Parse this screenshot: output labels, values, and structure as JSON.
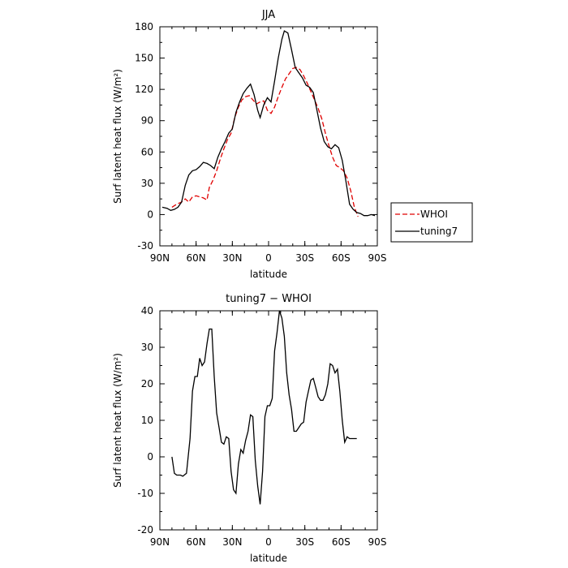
{
  "chart_data": [
    {
      "type": "line",
      "title": "JJA",
      "xlabel": "latitude",
      "ylabel": "Surf latent heat flux (W/m²)",
      "xlim": [
        90,
        -90
      ],
      "ylim": [
        -30,
        180
      ],
      "x_ticks": [
        {
          "value": 90,
          "label": "90N"
        },
        {
          "value": 60,
          "label": "60N"
        },
        {
          "value": 30,
          "label": "30N"
        },
        {
          "value": 0,
          "label": "0"
        },
        {
          "value": -30,
          "label": "30S"
        },
        {
          "value": -60,
          "label": "60S"
        },
        {
          "value": -90,
          "label": "90S"
        }
      ],
      "y_ticks": [
        -30,
        0,
        30,
        60,
        90,
        120,
        150,
        180
      ],
      "legend": {
        "placement": "outside-right",
        "entries": [
          "WHOI",
          "tuning7"
        ]
      },
      "series": [
        {
          "name": "WHOI",
          "color": "#e00000",
          "style": "dashed",
          "x": [
            80,
            76,
            72,
            69,
            66,
            63,
            60,
            57,
            54,
            51,
            49,
            46,
            43,
            40,
            37,
            34,
            31,
            28,
            25,
            22,
            19,
            16,
            13,
            10,
            7,
            4,
            1,
            -2,
            -5,
            -8,
            -11,
            -14,
            -17,
            -20,
            -23,
            -26,
            -29,
            -32,
            -35,
            -38,
            -41,
            -44,
            -47,
            -50,
            -53,
            -56,
            -59,
            -62,
            -65,
            -68,
            -71,
            -74
          ],
          "y": [
            7,
            10,
            12,
            15,
            12,
            17,
            18,
            17,
            16,
            14,
            26,
            33,
            42,
            53,
            63,
            72,
            78,
            93,
            103,
            110,
            113,
            114,
            110,
            106,
            108,
            109,
            100,
            97,
            103,
            113,
            122,
            130,
            135,
            140,
            141,
            139,
            133,
            126,
            118,
            110,
            102,
            92,
            78,
            66,
            55,
            47,
            45,
            42,
            35,
            23,
            7,
            -2
          ]
        },
        {
          "name": "tuning7",
          "color": "#000000",
          "style": "solid",
          "x": [
            88,
            84,
            81,
            78,
            75,
            72,
            69,
            66,
            63,
            60,
            57,
            54,
            51,
            48,
            45,
            42,
            39,
            36,
            33,
            30,
            27,
            24,
            21,
            18,
            15,
            12,
            9,
            7,
            4,
            1,
            -2,
            -5,
            -8,
            -11,
            -13,
            -16,
            -19,
            -22,
            -25,
            -28,
            -31,
            -34,
            -37,
            -40,
            -43,
            -46,
            -49,
            -52,
            -55,
            -58,
            -61,
            -64,
            -67,
            -70,
            -73,
            -76,
            -79,
            -82,
            -85,
            -88
          ],
          "y": [
            7,
            6,
            4,
            5,
            7,
            12,
            28,
            38,
            42,
            43,
            46,
            50,
            49,
            47,
            44,
            55,
            63,
            70,
            78,
            82,
            98,
            108,
            116,
            121,
            125,
            115,
            100,
            93,
            105,
            112,
            108,
            128,
            150,
            168,
            176,
            174,
            158,
            141,
            136,
            131,
            124,
            122,
            117,
            100,
            83,
            70,
            65,
            63,
            67,
            64,
            52,
            32,
            10,
            5,
            2,
            1,
            -1,
            -1,
            0,
            -1
          ]
        }
      ]
    },
    {
      "type": "line",
      "title": "tuning7 − WHOI",
      "xlabel": "latitude",
      "ylabel": "Surf latent heat flux (W/m²)",
      "xlim": [
        90,
        -90
      ],
      "ylim": [
        -20,
        40
      ],
      "x_ticks": [
        {
          "value": 90,
          "label": "90N"
        },
        {
          "value": 60,
          "label": "60N"
        },
        {
          "value": 30,
          "label": "30N"
        },
        {
          "value": 0,
          "label": "0"
        },
        {
          "value": -30,
          "label": "30S"
        },
        {
          "value": -60,
          "label": "60S"
        },
        {
          "value": -90,
          "label": "90S"
        }
      ],
      "y_ticks": [
        -20,
        -10,
        0,
        10,
        20,
        30,
        40
      ],
      "series": [
        {
          "name": "",
          "color": "#000000",
          "style": "solid",
          "x": [
            80,
            78,
            76,
            73,
            71,
            68,
            65,
            63,
            61,
            59,
            57,
            55,
            53,
            51,
            49,
            47,
            45,
            43,
            41,
            39,
            37,
            35,
            33,
            31,
            29,
            27,
            25,
            23,
            21,
            19,
            17,
            15,
            13,
            11,
            9,
            7,
            5,
            3,
            1,
            -1,
            -3,
            -5,
            -7,
            -9,
            -11,
            -13,
            -15,
            -17,
            -19,
            -21,
            -23,
            -25,
            -27,
            -29,
            -31,
            -33,
            -35,
            -37,
            -39,
            -41,
            -43,
            -45,
            -47,
            -49,
            -51,
            -53,
            -55,
            -57,
            -59,
            -61,
            -63,
            -65,
            -67,
            -69,
            -71,
            -73
          ],
          "y": [
            0,
            -4.5,
            -5,
            -5,
            -5.3,
            -4.5,
            5,
            18,
            22,
            22,
            27,
            25,
            26,
            31,
            35,
            35,
            22,
            12,
            8,
            4,
            3.5,
            5.5,
            5,
            -4,
            -9,
            -10,
            -2,
            2,
            1,
            4.5,
            7,
            11.5,
            11,
            -1,
            -8,
            -13,
            -4,
            11,
            14,
            14,
            16,
            29,
            34,
            40,
            38,
            33,
            23,
            17,
            13,
            7,
            7,
            8,
            9,
            9.5,
            15,
            18,
            21,
            21.5,
            19,
            16.5,
            15.5,
            15.5,
            17,
            20,
            25.5,
            25,
            23,
            24,
            18,
            10,
            4,
            5.5,
            5,
            5,
            5,
            5
          ]
        }
      ]
    }
  ]
}
